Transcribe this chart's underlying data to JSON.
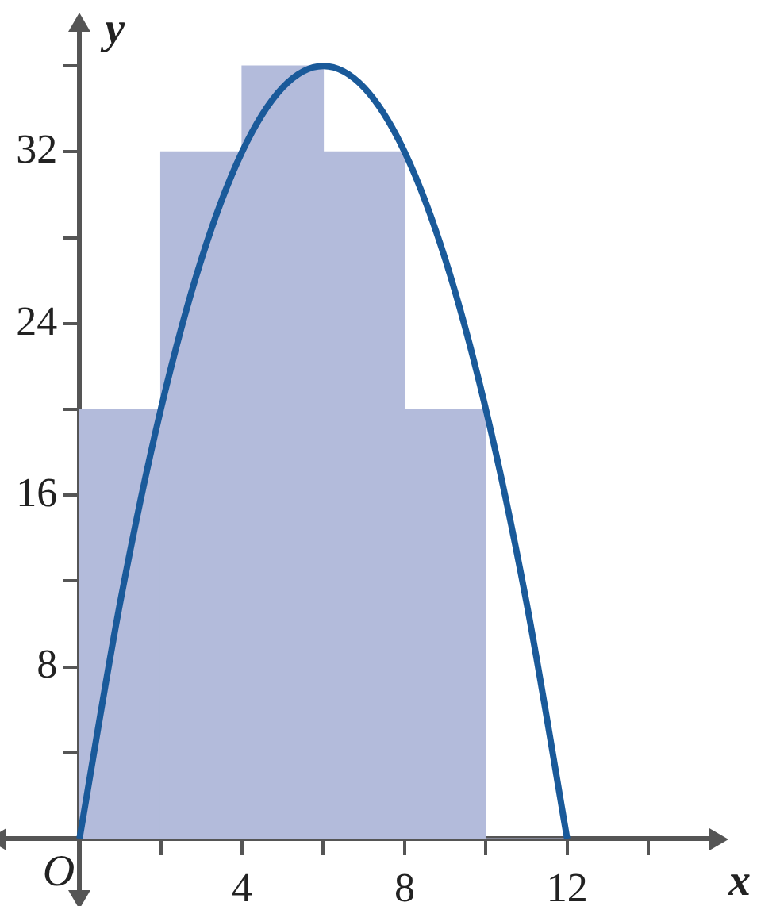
{
  "chart_data": {
    "type": "histogram",
    "xlabel": "x",
    "ylabel": "y",
    "xlim": [
      -1.8,
      15.5
    ],
    "ylim": [
      -2.4,
      37.6
    ],
    "xticks": [
      {
        "value": 2,
        "label": null
      },
      4,
      {
        "value": 6,
        "label": null
      },
      8,
      {
        "value": 10,
        "label": null
      },
      12,
      {
        "value": 14,
        "label": null
      }
    ],
    "yticks": [
      {
        "value": 4,
        "label": null
      },
      8,
      {
        "value": 12,
        "label": null
      },
      16,
      {
        "value": 20,
        "label": null
      },
      24,
      {
        "value": 28,
        "label": null
      },
      32,
      {
        "value": 36,
        "label": null
      }
    ],
    "grid": false,
    "legend": false,
    "annotations": [
      {
        "text": "O",
        "x": 0,
        "y": 0
      }
    ],
    "series": [
      {
        "color": "#b3bbdb",
        "bins": [
          0,
          2,
          4,
          6,
          8,
          10,
          12
        ],
        "values": [
          20,
          32,
          36,
          32,
          20,
          0
        ]
      },
      {
        "type": "line",
        "color": "#1a5a9a",
        "x": [
          0,
          1,
          2,
          3,
          4,
          5,
          6,
          7,
          8,
          9,
          10,
          11,
          12
        ],
        "values": [
          0,
          11,
          20,
          27,
          32,
          35,
          36,
          35,
          32,
          27,
          20,
          11,
          0
        ]
      }
    ]
  }
}
